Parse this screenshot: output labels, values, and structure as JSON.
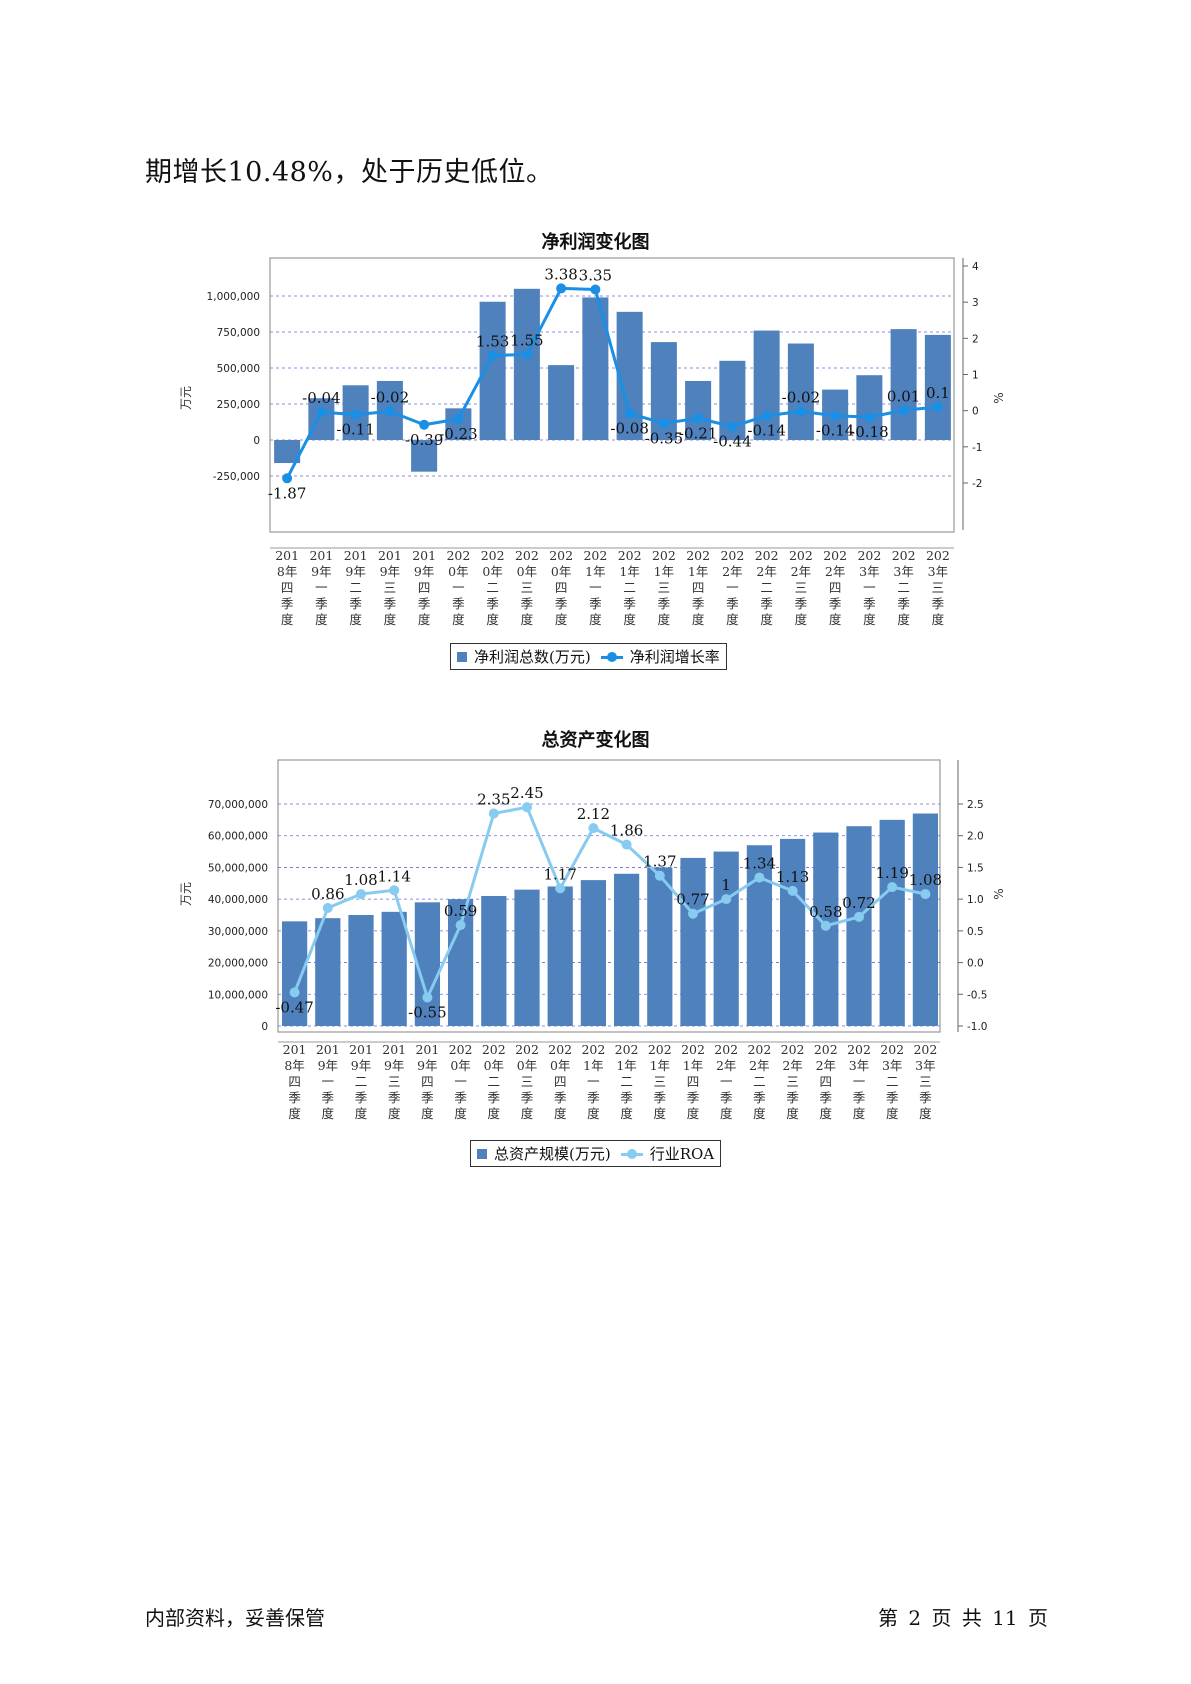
{
  "intro_text": "期增长10.48%，处于历史低位。",
  "footer": {
    "left": "内部资料，妥善保管",
    "right": "第 2 页   共 11 页"
  },
  "categories": [
    [
      "201",
      "8年",
      "四",
      "季",
      "度"
    ],
    [
      "201",
      "9年",
      "一",
      "季",
      "度"
    ],
    [
      "201",
      "9年",
      "二",
      "季",
      "度"
    ],
    [
      "201",
      "9年",
      "三",
      "季",
      "度"
    ],
    [
      "201",
      "9年",
      "四",
      "季",
      "度"
    ],
    [
      "202",
      "0年",
      "一",
      "季",
      "度"
    ],
    [
      "202",
      "0年",
      "二",
      "季",
      "度"
    ],
    [
      "202",
      "0年",
      "三",
      "季",
      "度"
    ],
    [
      "202",
      "0年",
      "四",
      "季",
      "度"
    ],
    [
      "202",
      "1年",
      "一",
      "季",
      "度"
    ],
    [
      "202",
      "1年",
      "二",
      "季",
      "度"
    ],
    [
      "202",
      "1年",
      "三",
      "季",
      "度"
    ],
    [
      "202",
      "1年",
      "四",
      "季",
      "度"
    ],
    [
      "202",
      "2年",
      "一",
      "季",
      "度"
    ],
    [
      "202",
      "2年",
      "二",
      "季",
      "度"
    ],
    [
      "202",
      "2年",
      "三",
      "季",
      "度"
    ],
    [
      "202",
      "2年",
      "四",
      "季",
      "度"
    ],
    [
      "202",
      "3年",
      "一",
      "季",
      "度"
    ],
    [
      "202",
      "3年",
      "二",
      "季",
      "度"
    ],
    [
      "202",
      "3年",
      "三",
      "季",
      "度"
    ]
  ],
  "chart_data": [
    {
      "type": "bar+line",
      "title": "净利润变化图",
      "ylabel": "万元",
      "y2label": "%",
      "ylim": [
        -250000,
        1000000
      ],
      "yticks": [
        -250000,
        0,
        250000,
        500000,
        750000,
        1000000
      ],
      "ytick_labels": [
        "-250,000",
        "0",
        "250,000",
        "500,000",
        "750,000",
        "1,000,000"
      ],
      "y2lim": [
        -2,
        4
      ],
      "y2ticks": [
        -2,
        -1,
        0,
        1,
        2,
        3,
        4
      ],
      "series": [
        {
          "name": "净利润总数(万元)",
          "kind": "bar",
          "color": "#4f81bd",
          "values": [
            -160000,
            290000,
            380000,
            410000,
            -220000,
            220000,
            960000,
            1050000,
            520000,
            990000,
            890000,
            680000,
            410000,
            550000,
            760000,
            670000,
            350000,
            450000,
            770000,
            730000
          ]
        },
        {
          "name": "净利润增长率",
          "kind": "line",
          "axis": "right",
          "color": "#1a8fe6",
          "values": [
            -1.87,
            -0.04,
            -0.11,
            -0.02,
            -0.39,
            -0.23,
            1.53,
            1.55,
            3.38,
            3.35,
            -0.08,
            -0.35,
            -0.21,
            -0.44,
            -0.14,
            -0.02,
            -0.14,
            -0.18,
            0.01,
            0.1
          ],
          "labels": [
            "-1.87",
            "-0.04",
            "-0.11",
            "-0.02",
            "-0.39",
            "-0.23",
            "1.53",
            "1.55",
            "3.38",
            "3.35",
            "-0.08",
            "-0.35",
            "-0.21",
            "-0.44",
            "-0.14",
            "-0.02",
            "-0.14",
            "-0.18",
            "0.01",
            "0.1"
          ]
        }
      ],
      "grid": true,
      "legend": "bottom"
    },
    {
      "type": "bar+line",
      "title": "总资产变化图",
      "ylabel": "万元",
      "y2label": "%",
      "ylim": [
        0,
        70000000
      ],
      "yticks": [
        0,
        10000000,
        20000000,
        30000000,
        40000000,
        50000000,
        60000000,
        70000000
      ],
      "ytick_labels": [
        "0",
        "10,000,000",
        "20,000,000",
        "30,000,000",
        "40,000,000",
        "50,000,000",
        "60,000,000",
        "70,000,000"
      ],
      "y2lim": [
        -1.0,
        2.5
      ],
      "y2ticks": [
        -1.0,
        -0.5,
        0.0,
        0.5,
        1.0,
        1.5,
        2.0,
        2.5
      ],
      "y2tick_labels": [
        "-1.0",
        "-0.5",
        "0.0",
        "0.5",
        "1.0",
        "1.5",
        "2.0",
        "2.5"
      ],
      "series": [
        {
          "name": "总资产规模(万元)",
          "kind": "bar",
          "color": "#4f81bd",
          "values": [
            33000000,
            34000000,
            35000000,
            36000000,
            39000000,
            40000000,
            41000000,
            43000000,
            44000000,
            46000000,
            48000000,
            50000000,
            53000000,
            55000000,
            57000000,
            59000000,
            61000000,
            63000000,
            65000000,
            67000000
          ]
        },
        {
          "name": "行业ROA",
          "kind": "line",
          "axis": "right",
          "color": "#87cbf0",
          "values": [
            -0.47,
            0.86,
            1.08,
            1.14,
            -0.55,
            0.59,
            2.35,
            2.45,
            1.17,
            2.12,
            1.86,
            1.37,
            0.77,
            1,
            1.34,
            1.13,
            0.58,
            0.72,
            1.19,
            1.08
          ],
          "labels": [
            "-0.47",
            "0.86",
            "1.08",
            "1.14",
            "-0.55",
            "0.59",
            "2.35",
            "2.45",
            "1.17",
            "2.12",
            "1.86",
            "1.37",
            "0.77",
            "1",
            "1.34",
            "1.13",
            "0.58",
            "0.72",
            "1.19",
            "1.08"
          ]
        }
      ],
      "grid": true,
      "legend": "bottom"
    }
  ]
}
